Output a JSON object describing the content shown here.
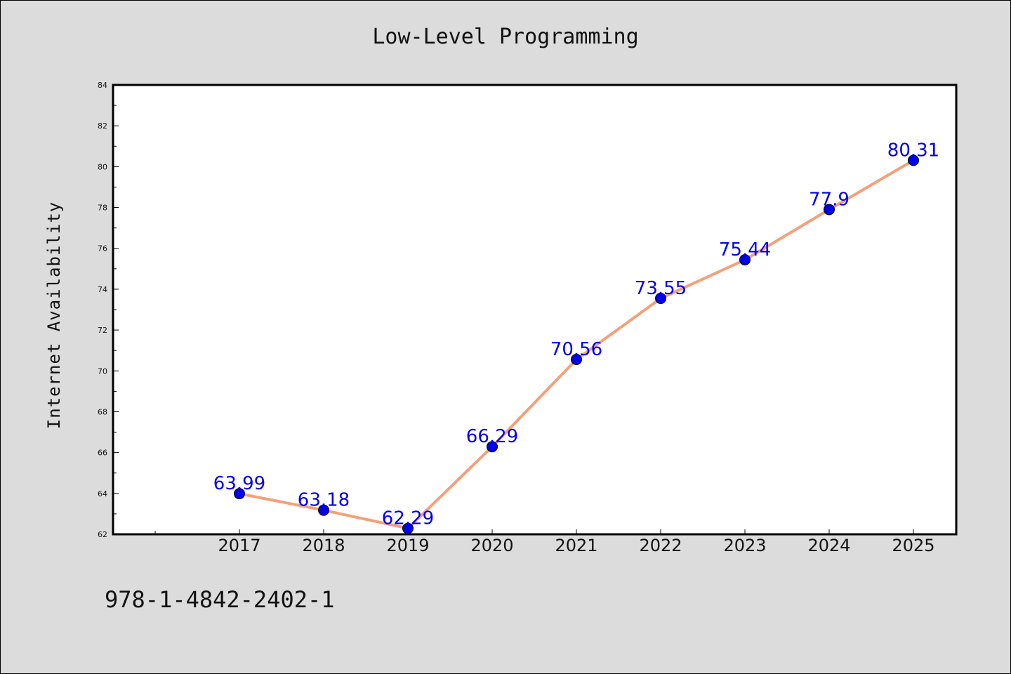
{
  "chart_data": {
    "type": "line",
    "title": "Low-Level Programming",
    "xlabel": "",
    "ylabel": "Internet Availability",
    "categories": [
      "2017",
      "2018",
      "2019",
      "2020",
      "2021",
      "2022",
      "2023",
      "2024",
      "2025"
    ],
    "series": [
      {
        "values": [
          63.99,
          63.18,
          62.29,
          66.29,
          70.56,
          73.55,
          75.44,
          77.9,
          80.31
        ],
        "data_labels": [
          "63.99",
          "63.18",
          "62.29",
          "66.29",
          "70.56",
          "73.55",
          "75.44",
          "77.9",
          "80.31"
        ],
        "line_color": "#f4a07a",
        "marker_color": "#0000ee"
      }
    ],
    "ylim": [
      62,
      84
    ],
    "yticks": [
      "62",
      "64",
      "66",
      "68",
      "70",
      "72",
      "74",
      "76",
      "78",
      "80",
      "82",
      "84"
    ],
    "grid": false,
    "legend": "none"
  },
  "footer": {
    "code": "978-1-4842-2402-1"
  },
  "colors": {
    "background": "#dcdcdc",
    "plot_background": "#ffffff",
    "line": "#f4a07a",
    "marker": "#0000ee",
    "data_label": "#0000ee"
  }
}
